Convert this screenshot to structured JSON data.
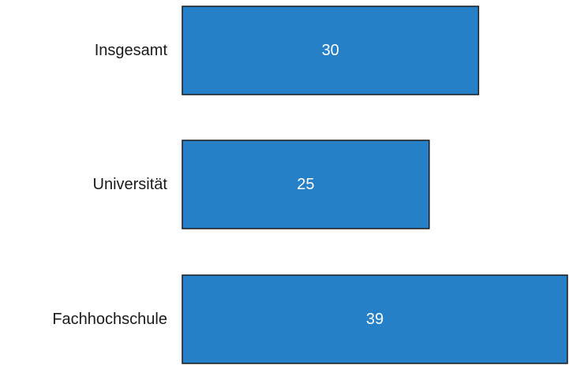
{
  "chart_data": {
    "type": "bar",
    "orientation": "horizontal",
    "categories": [
      "Insgesamt",
      "Universität",
      "Fachhochschule"
    ],
    "values": [
      30,
      25,
      39
    ],
    "value_labels": [
      "30",
      "25",
      "39"
    ],
    "title": "",
    "xlabel": "",
    "ylabel": "",
    "xlim": [
      0,
      39
    ],
    "grid": false,
    "legend": "none",
    "bar_color": "#2680C8",
    "bar_border_color": "#1a1a1a"
  }
}
